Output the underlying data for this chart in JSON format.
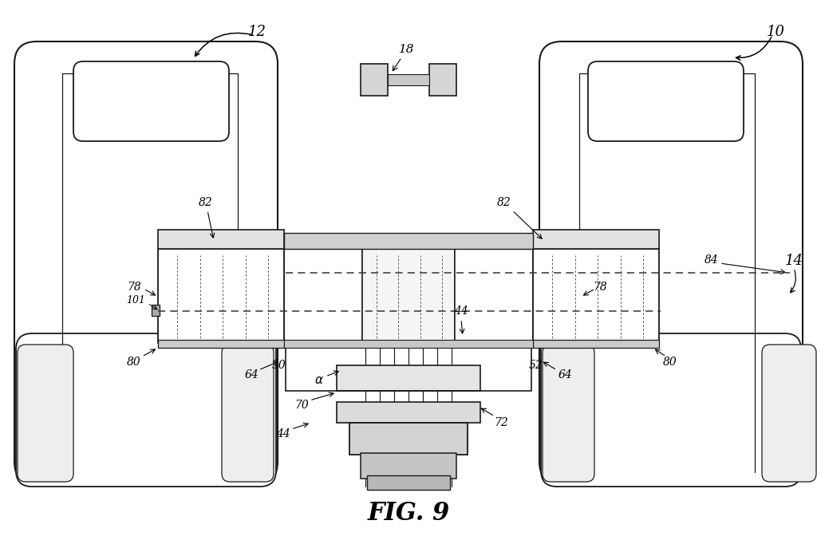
{
  "background": "#ffffff",
  "line_color": "#1a1a1a",
  "fig_label": "FIG. 9",
  "fig_width": 10.24,
  "fig_height": 6.82,
  "dpi": 100
}
